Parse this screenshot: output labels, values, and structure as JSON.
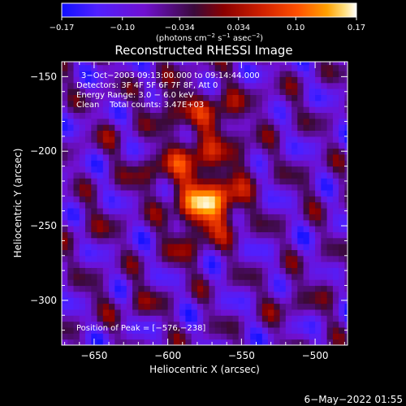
{
  "colorbar": {
    "ticks": [
      "−0.17",
      "−0.10",
      "−0.034",
      "0.034",
      "0.10",
      "0.17"
    ],
    "tick_values": [
      -0.17,
      -0.1,
      -0.034,
      0.034,
      0.1,
      0.17
    ],
    "range": [
      -0.17,
      0.17
    ],
    "units_main": "(photons cm",
    "units_sup1": "−2",
    "units_mid": " s",
    "units_sup2": "−1",
    "units_mid2": " asec",
    "units_sup3": "−2",
    "units_end": ")",
    "colors": [
      "#1010ff",
      "#5020ff",
      "#7010d0",
      "#3a0a3a",
      "#8a0000",
      "#d02000",
      "#ff5000",
      "#ffa000",
      "#ffe080",
      "#ffffff"
    ]
  },
  "title": "Reconstructed RHESSI Image",
  "annotations": {
    "time": "3−Oct−2003 09:13:00.000 to 09:14:44.000",
    "detectors": "Detectors: 3F 4F 5F 6F 7F 8F, Att 0",
    "energy": "Energy Range: 3.0 − 6.0 keV",
    "clean": "Clean    Total counts: 3.47E+03",
    "peak": "Position of Peak = [−576,−238]"
  },
  "footer": {
    "timestamp": "6−May−2022 01:55"
  },
  "chart_data": {
    "type": "heatmap",
    "title": "Reconstructed RHESSI Image",
    "xlabel": "Heliocentric X (arcsec)",
    "ylabel": "Heliocentric Y (arcsec)",
    "xlim": [
      -672,
      -478
    ],
    "ylim": [
      -330,
      -140
    ],
    "x_ticks": [
      -650,
      -600,
      -550,
      -500
    ],
    "x_tick_labels": [
      "−650",
      "−600",
      "−550",
      "−500"
    ],
    "y_ticks": [
      -150,
      -200,
      -250,
      -300
    ],
    "y_tick_labels": [
      "−150",
      "−200",
      "−250",
      "−300"
    ],
    "peak": {
      "x": -576,
      "y": -238
    },
    "value_range": [
      -0.17,
      0.17
    ],
    "grid": false
  }
}
